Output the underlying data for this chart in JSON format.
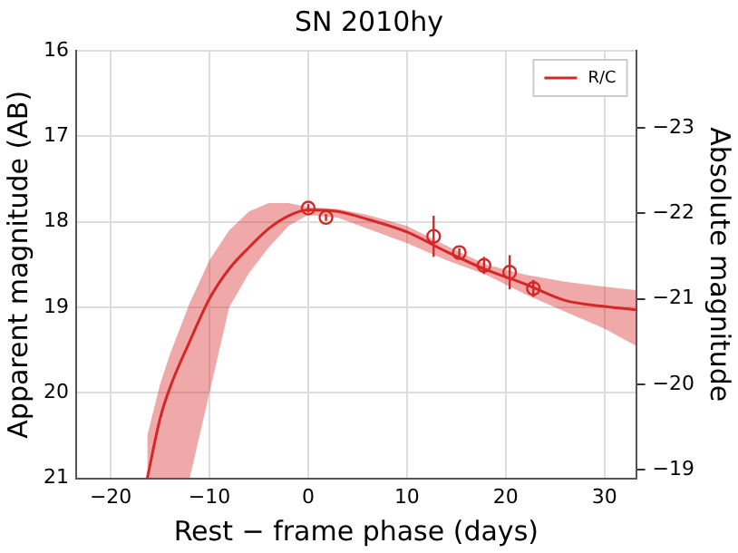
{
  "chart_data": {
    "type": "line",
    "title": "SN 2010hy",
    "xlabel": "Rest − frame phase (days)",
    "ylabel": "Apparent magnitude (AB)",
    "y2label": "Absolute magnitude",
    "xlim": [
      -23.5,
      33.2
    ],
    "xticks": [
      -20,
      -10,
      0,
      10,
      20,
      30
    ],
    "ylim": [
      21,
      16
    ],
    "yticks": [
      16,
      17,
      18,
      19,
      20,
      21
    ],
    "y2lim": [
      -18.9,
      -23.9
    ],
    "y2ticks": [
      -23,
      -22,
      -21,
      -20,
      -19
    ],
    "grid": true,
    "legend": "top right",
    "series": [
      {
        "name": "R/C",
        "type": "line",
        "color": "#d62728",
        "marker": "none",
        "x": [
          -16.3,
          -15,
          -14,
          -12,
          -10,
          -8,
          -6,
          -4,
          -2,
          0,
          3,
          6,
          10,
          14,
          18,
          22,
          26,
          30,
          33.2
        ],
        "values": [
          21,
          20.3,
          19.94,
          19.4,
          18.9,
          18.55,
          18.3,
          18.08,
          17.93,
          17.86,
          17.88,
          17.97,
          18.12,
          18.35,
          18.56,
          18.73,
          18.92,
          18.99,
          19.03
        ],
        "lower": [
          20.5,
          19.9,
          19.55,
          18.95,
          18.45,
          18.1,
          17.88,
          17.78,
          17.78,
          17.83,
          17.85,
          17.92,
          18.05,
          18.28,
          18.5,
          18.62,
          18.7,
          18.76,
          18.8
        ],
        "upper": [
          21,
          21,
          21,
          21,
          20.0,
          19.0,
          18.6,
          18.3,
          18.05,
          17.92,
          17.95,
          18.08,
          18.25,
          18.45,
          18.62,
          18.85,
          19.05,
          19.25,
          19.45
        ]
      },
      {
        "type": "scatter",
        "color": "#d62728",
        "marker": "circle",
        "x": [
          0,
          1.8,
          12.7,
          15.3,
          17.8,
          20.4,
          22.8
        ],
        "values": [
          17.84,
          17.95,
          18.17,
          18.36,
          18.51,
          18.59,
          18.78
        ],
        "errors": [
          0.05,
          0.04,
          0.24,
          0.05,
          0.1,
          0.2,
          0.1
        ]
      }
    ]
  }
}
